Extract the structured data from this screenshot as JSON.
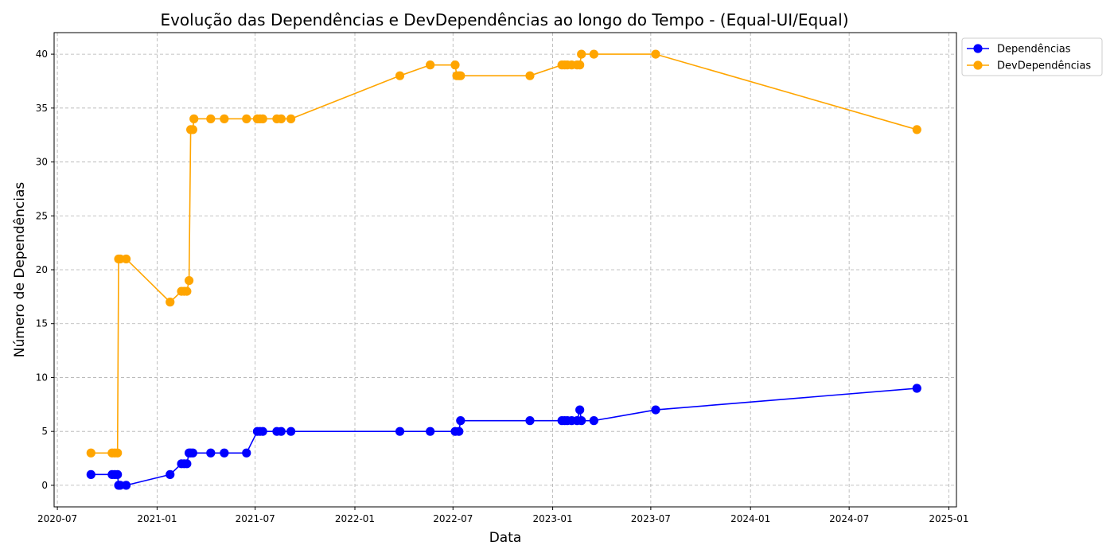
{
  "chart_data": {
    "type": "line",
    "title": "Evolução das Dependências e DevDependências ao longo do Tempo - (Equal-UI/Equal)",
    "xlabel": "Data",
    "ylabel": "Número de Dependências",
    "x_ticks": [
      "2020-07",
      "2021-01",
      "2021-07",
      "2022-01",
      "2022-07",
      "2023-01",
      "2023-07",
      "2024-01",
      "2024-07",
      "2025-01"
    ],
    "y_ticks": [
      0,
      5,
      10,
      15,
      20,
      25,
      30,
      35,
      40
    ],
    "xlim": [
      "2020-06-25",
      "2025-01-15"
    ],
    "ylim": [
      -2,
      42
    ],
    "grid": true,
    "legend_position": "outside-top-right",
    "series": [
      {
        "name": "Dependências",
        "color": "#0000ff",
        "points": [
          [
            "2020-09-01",
            1
          ],
          [
            "2020-10-10",
            1
          ],
          [
            "2020-10-15",
            1
          ],
          [
            "2020-10-20",
            1
          ],
          [
            "2020-10-22",
            0
          ],
          [
            "2020-10-25",
            0
          ],
          [
            "2020-11-05",
            0
          ],
          [
            "2021-01-25",
            1
          ],
          [
            "2021-02-15",
            2
          ],
          [
            "2021-02-20",
            2
          ],
          [
            "2021-02-25",
            2
          ],
          [
            "2021-03-01",
            3
          ],
          [
            "2021-03-04",
            3
          ],
          [
            "2021-03-08",
            3
          ],
          [
            "2021-04-10",
            3
          ],
          [
            "2021-05-05",
            3
          ],
          [
            "2021-06-15",
            3
          ],
          [
            "2021-07-05",
            5
          ],
          [
            "2021-07-10",
            5
          ],
          [
            "2021-07-15",
            5
          ],
          [
            "2021-08-10",
            5
          ],
          [
            "2021-08-18",
            5
          ],
          [
            "2021-09-05",
            5
          ],
          [
            "2022-03-25",
            5
          ],
          [
            "2022-05-20",
            5
          ],
          [
            "2022-07-05",
            5
          ],
          [
            "2022-07-12",
            5
          ],
          [
            "2022-07-15",
            6
          ],
          [
            "2022-11-20",
            6
          ],
          [
            "2023-01-18",
            6
          ],
          [
            "2023-01-23",
            6
          ],
          [
            "2023-01-28",
            6
          ],
          [
            "2023-02-05",
            6
          ],
          [
            "2023-02-15",
            6
          ],
          [
            "2023-02-20",
            7
          ],
          [
            "2023-02-23",
            6
          ],
          [
            "2023-03-18",
            6
          ],
          [
            "2023-07-10",
            7
          ],
          [
            "2024-11-03",
            9
          ]
        ]
      },
      {
        "name": "DevDependências",
        "color": "#ffa500",
        "points": [
          [
            "2020-09-01",
            3
          ],
          [
            "2020-10-10",
            3
          ],
          [
            "2020-10-15",
            3
          ],
          [
            "2020-10-20",
            3
          ],
          [
            "2020-10-22",
            21
          ],
          [
            "2020-10-25",
            21
          ],
          [
            "2020-11-05",
            21
          ],
          [
            "2021-01-25",
            17
          ],
          [
            "2021-02-15",
            18
          ],
          [
            "2021-02-20",
            18
          ],
          [
            "2021-02-25",
            18
          ],
          [
            "2021-03-01",
            19
          ],
          [
            "2021-03-04",
            33
          ],
          [
            "2021-03-08",
            33
          ],
          [
            "2021-03-10",
            34
          ],
          [
            "2021-04-10",
            34
          ],
          [
            "2021-05-05",
            34
          ],
          [
            "2021-06-15",
            34
          ],
          [
            "2021-07-05",
            34
          ],
          [
            "2021-07-10",
            34
          ],
          [
            "2021-07-15",
            34
          ],
          [
            "2021-08-10",
            34
          ],
          [
            "2021-08-18",
            34
          ],
          [
            "2021-09-05",
            34
          ],
          [
            "2022-03-25",
            38
          ],
          [
            "2022-05-20",
            39
          ],
          [
            "2022-07-05",
            39
          ],
          [
            "2022-07-08",
            38
          ],
          [
            "2022-07-12",
            38
          ],
          [
            "2022-07-15",
            38
          ],
          [
            "2022-11-20",
            38
          ],
          [
            "2023-01-18",
            39
          ],
          [
            "2023-01-23",
            39
          ],
          [
            "2023-01-28",
            39
          ],
          [
            "2023-02-05",
            39
          ],
          [
            "2023-02-15",
            39
          ],
          [
            "2023-02-20",
            39
          ],
          [
            "2023-02-23",
            40
          ],
          [
            "2023-03-18",
            40
          ],
          [
            "2023-07-10",
            40
          ],
          [
            "2024-11-03",
            33
          ]
        ]
      }
    ]
  }
}
